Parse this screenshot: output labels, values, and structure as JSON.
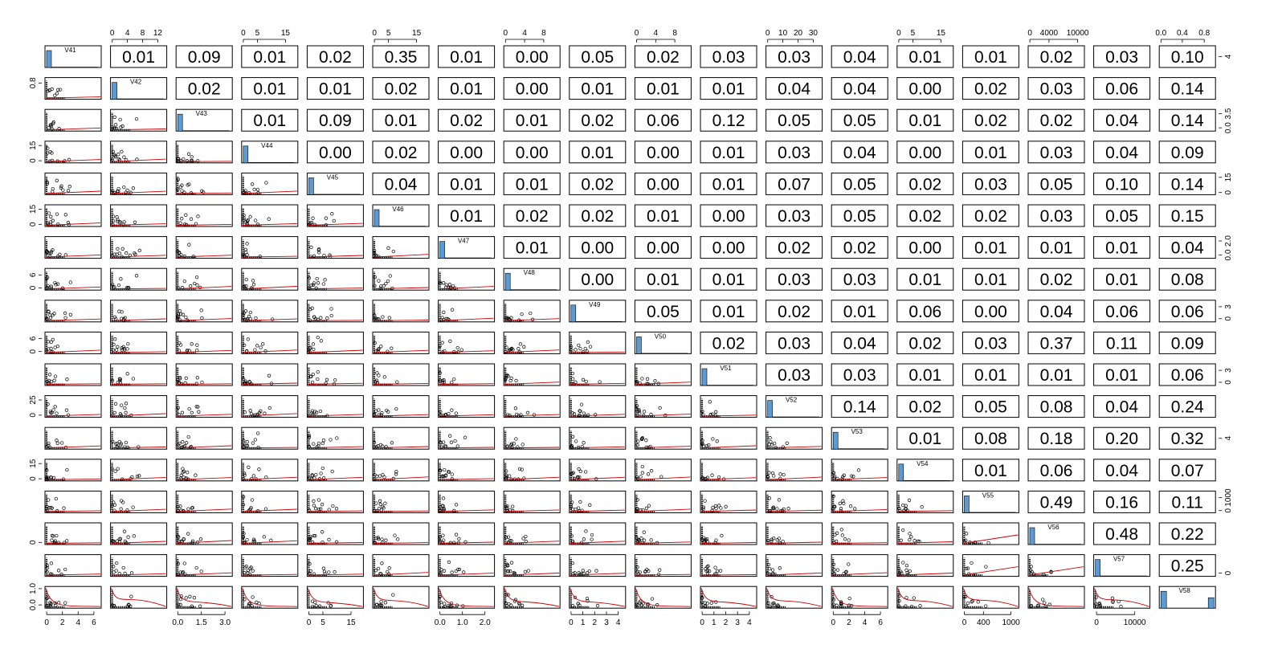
{
  "chart_data": {
    "type": "scatter-matrix",
    "variables": [
      "V41",
      "V42",
      "V43",
      "V44",
      "V45",
      "V46",
      "V47",
      "V48",
      "V49",
      "V50",
      "V51",
      "V52",
      "V53",
      "V54",
      "V55",
      "V56",
      "V57",
      "V58"
    ],
    "upper_correlations": [
      [
        "0.01",
        "0.09",
        "0.01",
        "0.02",
        "0.35",
        "0.01",
        "0.00",
        "0.05",
        "0.02",
        "0.03",
        "0.03",
        "0.04",
        "0.01",
        "0.01",
        "0.02",
        "0.03",
        "0.10"
      ],
      [
        "0.02",
        "0.01",
        "0.01",
        "0.02",
        "0.01",
        "0.00",
        "0.01",
        "0.01",
        "0.01",
        "0.04",
        "0.04",
        "0.00",
        "0.02",
        "0.03",
        "0.06",
        "0.14"
      ],
      [
        "0.01",
        "0.09",
        "0.01",
        "0.02",
        "0.01",
        "0.02",
        "0.06",
        "0.12",
        "0.05",
        "0.05",
        "0.01",
        "0.02",
        "0.02",
        "0.04",
        "0.14"
      ],
      [
        "0.00",
        "0.02",
        "0.00",
        "0.00",
        "0.01",
        "0.00",
        "0.01",
        "0.03",
        "0.04",
        "0.00",
        "0.01",
        "0.03",
        "0.04",
        "0.09"
      ],
      [
        "0.04",
        "0.01",
        "0.01",
        "0.02",
        "0.00",
        "0.01",
        "0.07",
        "0.05",
        "0.02",
        "0.03",
        "0.05",
        "0.10",
        "0.14"
      ],
      [
        "0.01",
        "0.02",
        "0.02",
        "0.01",
        "0.00",
        "0.03",
        "0.05",
        "0.02",
        "0.02",
        "0.03",
        "0.05",
        "0.15"
      ],
      [
        "0.01",
        "0.00",
        "0.00",
        "0.00",
        "0.02",
        "0.02",
        "0.00",
        "0.01",
        "0.01",
        "0.01",
        "0.04"
      ],
      [
        "0.00",
        "0.01",
        "0.01",
        "0.03",
        "0.03",
        "0.01",
        "0.01",
        "0.02",
        "0.01",
        "0.08"
      ],
      [
        "0.05",
        "0.01",
        "0.02",
        "0.01",
        "0.06",
        "0.00",
        "0.04",
        "0.06",
        "0.06"
      ],
      [
        "0.02",
        "0.03",
        "0.04",
        "0.02",
        "0.03",
        "0.37",
        "0.11",
        "0.09"
      ],
      [
        "0.03",
        "0.03",
        "0.01",
        "0.01",
        "0.01",
        "0.01",
        "0.06"
      ],
      [
        "0.14",
        "0.02",
        "0.05",
        "0.08",
        "0.04",
        "0.24"
      ],
      [
        "0.01",
        "0.08",
        "0.18",
        "0.20",
        "0.32"
      ],
      [
        "0.01",
        "0.06",
        "0.04",
        "0.07"
      ],
      [
        "0.49",
        "0.16",
        "0.11"
      ],
      [
        "0.48",
        "0.22"
      ],
      [
        "0.25"
      ]
    ],
    "top_axes": [
      {
        "col": 1,
        "ticks": [
          "0",
          "4",
          "8",
          "12"
        ],
        "at": [
          0.03,
          0.3,
          0.57,
          0.84
        ]
      },
      {
        "col": 3,
        "ticks": [
          "0",
          "5",
          "15"
        ],
        "at": [
          0.03,
          0.28,
          0.78
        ]
      },
      {
        "col": 5,
        "ticks": [
          "0",
          "5",
          "15"
        ],
        "at": [
          0.03,
          0.28,
          0.78
        ]
      },
      {
        "col": 7,
        "ticks": [
          "0",
          "4",
          "8"
        ],
        "at": [
          0.03,
          0.37,
          0.71
        ]
      },
      {
        "col": 9,
        "ticks": [
          "0",
          "4",
          "8"
        ],
        "at": [
          0.03,
          0.37,
          0.71
        ]
      },
      {
        "col": 11,
        "ticks": [
          "0",
          "10",
          "20",
          "30"
        ],
        "at": [
          0.03,
          0.3,
          0.57,
          0.84
        ]
      },
      {
        "col": 13,
        "ticks": [
          "0",
          "5",
          "15"
        ],
        "at": [
          0.03,
          0.28,
          0.78
        ]
      },
      {
        "col": 15,
        "ticks": [
          "0",
          "4000",
          "10000"
        ],
        "at": [
          0.03,
          0.37,
          0.88
        ]
      },
      {
        "col": 17,
        "ticks": [
          "0.0",
          "0.4",
          "0.8"
        ],
        "at": [
          0.03,
          0.41,
          0.8
        ]
      }
    ],
    "bottom_axes": [
      {
        "col": 0,
        "ticks": [
          "0",
          "2",
          "4",
          "6"
        ],
        "at": [
          0.03,
          0.31,
          0.59,
          0.87
        ]
      },
      {
        "col": 2,
        "ticks": [
          "0.0",
          "1.5",
          "3.0"
        ],
        "at": [
          0.03,
          0.45,
          0.87
        ]
      },
      {
        "col": 4,
        "ticks": [
          "0",
          "5",
          "15"
        ],
        "at": [
          0.03,
          0.28,
          0.78
        ]
      },
      {
        "col": 6,
        "ticks": [
          "0.0",
          "1.0",
          "2.0"
        ],
        "at": [
          0.03,
          0.43,
          0.83
        ]
      },
      {
        "col": 8,
        "ticks": [
          "0",
          "1",
          "2",
          "3",
          "4"
        ],
        "at": [
          0.03,
          0.24,
          0.45,
          0.66,
          0.87
        ]
      },
      {
        "col": 10,
        "ticks": [
          "0",
          "1",
          "2",
          "3",
          "4"
        ],
        "at": [
          0.03,
          0.24,
          0.45,
          0.66,
          0.87
        ]
      },
      {
        "col": 12,
        "ticks": [
          "0",
          "2",
          "4",
          "6"
        ],
        "at": [
          0.03,
          0.31,
          0.59,
          0.87
        ]
      },
      {
        "col": 14,
        "ticks": [
          "0",
          "400",
          "1000"
        ],
        "at": [
          0.03,
          0.37,
          0.86
        ]
      },
      {
        "col": 16,
        "ticks": [
          "0",
          "10000"
        ],
        "at": [
          0.05,
          0.73
        ]
      }
    ],
    "left_axes": [
      {
        "row": 1,
        "ticks": [
          "0.8"
        ],
        "at": [
          0.25
        ]
      },
      {
        "row": 3,
        "ticks": [
          "0",
          "15"
        ],
        "at": [
          0.9,
          0.2
        ]
      },
      {
        "row": 5,
        "ticks": [
          "0",
          "15"
        ],
        "at": [
          0.9,
          0.2
        ]
      },
      {
        "row": 7,
        "ticks": [
          "0",
          "6"
        ],
        "at": [
          0.9,
          0.3
        ]
      },
      {
        "row": 9,
        "ticks": [
          "0",
          "6"
        ],
        "at": [
          0.9,
          0.3
        ]
      },
      {
        "row": 11,
        "ticks": [
          "0",
          "25"
        ],
        "at": [
          0.9,
          0.2
        ]
      },
      {
        "row": 13,
        "ticks": [
          "0",
          "15"
        ],
        "at": [
          0.9,
          0.2
        ]
      },
      {
        "row": 15,
        "ticks": [
          "0"
        ],
        "at": [
          0.9
        ]
      },
      {
        "row": 17,
        "ticks": [
          "0.0",
          "1.0"
        ],
        "at": [
          0.85,
          0.1
        ]
      }
    ],
    "right_axes": [
      {
        "row": 0,
        "ticks": [
          "4"
        ],
        "at": [
          0.5
        ]
      },
      {
        "row": 2,
        "ticks": [
          "0.0",
          "3.5"
        ],
        "at": [
          0.85,
          0.2
        ]
      },
      {
        "row": 4,
        "ticks": [
          "0",
          "15"
        ],
        "at": [
          0.9,
          0.2
        ]
      },
      {
        "row": 6,
        "ticks": [
          "0.0",
          "2.0"
        ],
        "at": [
          0.85,
          0.2
        ]
      },
      {
        "row": 8,
        "ticks": [
          "0",
          "3"
        ],
        "at": [
          0.85,
          0.3
        ]
      },
      {
        "row": 10,
        "ticks": [
          "0",
          "3"
        ],
        "at": [
          0.85,
          0.3
        ]
      },
      {
        "row": 12,
        "ticks": [
          "4"
        ],
        "at": [
          0.5
        ]
      },
      {
        "row": 14,
        "ticks": [
          "0",
          "1000"
        ],
        "at": [
          0.9,
          0.3
        ]
      },
      {
        "row": 16,
        "ticks": [
          "0"
        ],
        "at": [
          0.85
        ]
      }
    ],
    "colors": {
      "hist": "#5b9bd5",
      "smooth": "#cc0000",
      "frame": "#000000",
      "points": "#000000",
      "highlight": "#cc0000"
    }
  }
}
